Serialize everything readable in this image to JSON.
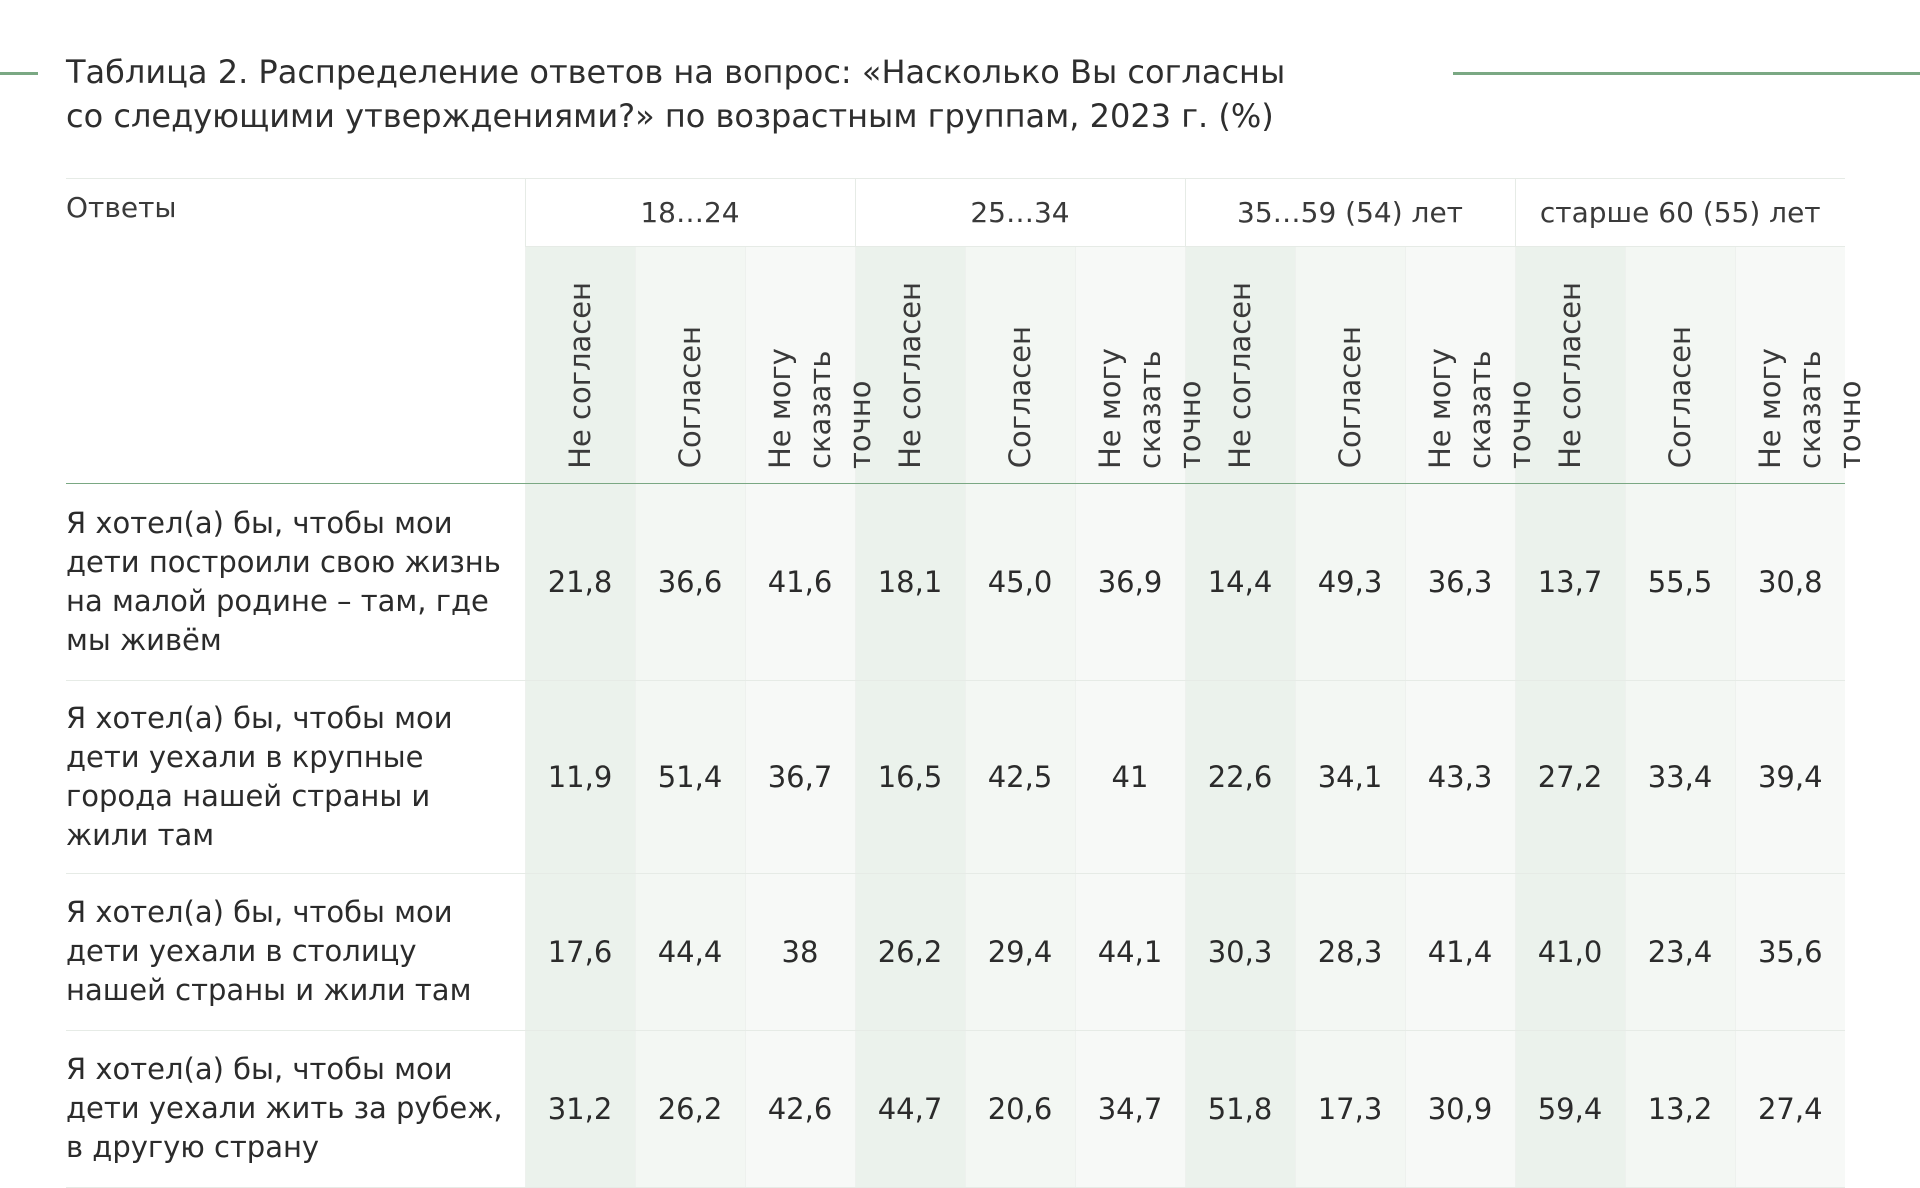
{
  "title": {
    "line1": "Таблица 2. Распределение ответов на вопрос: «Насколько Вы согласны",
    "line2": "со следующими утверждениями?» по возрастным группам, 2023 г. (%)"
  },
  "table": {
    "answers_header": "Ответы",
    "groups": [
      "18…24",
      "25…34",
      "35…59 (54) лет",
      "старше 60 (55) лет"
    ],
    "subheaders": [
      "Не согласен",
      "Согласен",
      "Не могу сказать точно"
    ],
    "rows": [
      {
        "answer": "Я хотел(а) бы, чтобы мои дети построили свою жизнь на малой родине – там, где мы живём",
        "values": [
          "21,8",
          "36,6",
          "41,6",
          "18,1",
          "45,0",
          "36,9",
          "14,4",
          "49,3",
          "36,3",
          "13,7",
          "55,5",
          "30,8"
        ]
      },
      {
        "answer": "Я хотел(а) бы, чтобы мои дети уехали в крупные города нашей страны и жили там",
        "values": [
          "11,9",
          "51,4",
          "36,7",
          "16,5",
          "42,5",
          "41",
          "22,6",
          "34,1",
          "43,3",
          "27,2",
          "33,4",
          "39,4"
        ]
      },
      {
        "answer": "Я хотел(а) бы, чтобы мои дети уехали в столицу нашей страны и жили там",
        "values": [
          "17,6",
          "44,4",
          "38",
          "26,2",
          "29,4",
          "44,1",
          "30,3",
          "28,3",
          "41,4",
          "41,0",
          "23,4",
          "35,6"
        ]
      },
      {
        "answer": "Я хотел(а) бы, чтобы мои дети уехали жить за рубеж, в другую страну",
        "values": [
          "31,2",
          "26,2",
          "42,6",
          "44,7",
          "20,6",
          "34,7",
          "51,8",
          "17,3",
          "30,9",
          "59,4",
          "13,2",
          "27,4"
        ]
      }
    ]
  },
  "colors": {
    "accent_line": "#7aa883",
    "shade_disagree": "#ebf2ec",
    "shade_agree": "#f3f7f3",
    "shade_unsure": "#f7f9f7"
  }
}
